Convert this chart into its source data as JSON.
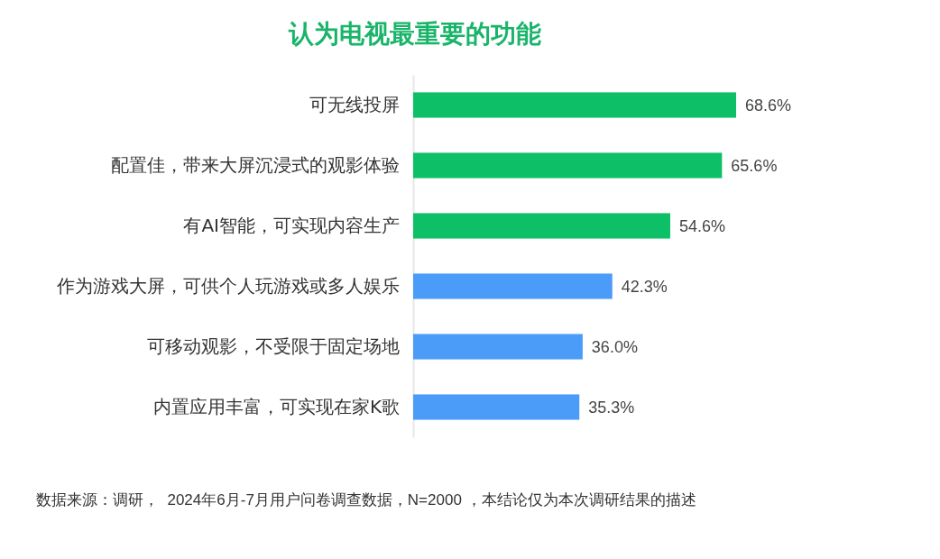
{
  "chart_data": {
    "type": "bar",
    "orientation": "horizontal",
    "title": "认为电视最重要的功能",
    "categories": [
      "可无线投屏",
      "配置佳，带来大屏沉浸式的观影体验",
      "有AI智能，可实现内容生产",
      "作为游戏大屏，可供个人玩游戏或多人娱乐",
      "可移动观影，不受限于固定场地",
      "内置应用丰富，可实现在家K歌"
    ],
    "values": [
      68.6,
      65.6,
      54.6,
      42.3,
      36.0,
      35.3
    ],
    "value_labels": [
      "68.6%",
      "65.6%",
      "54.6%",
      "42.3%",
      "36.0%",
      "35.3%"
    ],
    "colors": [
      "#0dbf66",
      "#0dbf66",
      "#0dbf66",
      "#4b9bf9",
      "#4b9bf9",
      "#4b9bf9"
    ],
    "annotations": [
      "数据来源：调研，  2024年6月-7月用户问卷调查数据，N=2000 ，本结论仅为本次调研结果的描述"
    ]
  }
}
